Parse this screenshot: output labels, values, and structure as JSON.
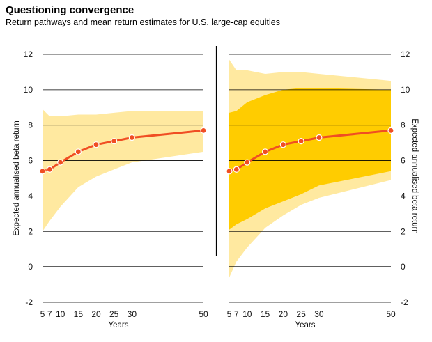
{
  "title": "Questioning convergence",
  "subtitle": "Return pathways and mean return estimates for U.S. large-cap equities",
  "colors": {
    "outer_band": "#FFE9A0",
    "inner_band": "#FFCC00",
    "line": "#F04E23",
    "marker": "#F04E23",
    "grid": "#000000"
  },
  "chart_data": [
    {
      "type": "area",
      "panel": "left",
      "xlabel": "Years",
      "ylabel": "Expected annualised beta return",
      "ylim": [
        -2,
        12
      ],
      "yticks": [
        -2,
        0,
        2,
        4,
        6,
        8,
        10,
        12
      ],
      "xticks": [
        5,
        7,
        10,
        15,
        20,
        25,
        30,
        50
      ],
      "grid": true,
      "bands": [
        {
          "x": [
            5,
            7,
            10,
            15,
            20,
            25,
            30,
            50
          ],
          "upper": [
            8.9,
            8.5,
            8.5,
            8.6,
            8.6,
            8.7,
            8.8,
            8.8
          ],
          "lower": [
            2.0,
            2.6,
            3.4,
            4.5,
            5.1,
            5.5,
            5.9,
            6.5
          ]
        }
      ],
      "series": [
        {
          "x": [
            5,
            7,
            10,
            15,
            20,
            25,
            30,
            50
          ],
          "values": [
            5.4,
            5.5,
            5.9,
            6.5,
            6.9,
            7.1,
            7.3,
            7.7
          ]
        }
      ]
    },
    {
      "type": "area",
      "panel": "right",
      "xlabel": "Years",
      "ylabel": "Expected annualised beta return",
      "ylim": [
        -2,
        12
      ],
      "yticks": [
        -2,
        0,
        2,
        4,
        6,
        8,
        10,
        12
      ],
      "xticks": [
        5,
        7,
        10,
        15,
        20,
        25,
        30,
        50
      ],
      "grid": true,
      "bands": [
        {
          "x": [
            5,
            7,
            10,
            15,
            20,
            25,
            30,
            50
          ],
          "upper": [
            11.7,
            11.1,
            11.1,
            10.9,
            11.0,
            11.0,
            10.9,
            10.5
          ],
          "lower": [
            -0.6,
            0.3,
            1.1,
            2.2,
            2.9,
            3.5,
            3.9,
            4.9
          ]
        },
        {
          "x": [
            5,
            7,
            10,
            15,
            20,
            25,
            30,
            50
          ],
          "upper": [
            8.7,
            8.8,
            9.3,
            9.7,
            10.0,
            10.1,
            10.1,
            10.0
          ],
          "lower": [
            2.1,
            2.4,
            2.7,
            3.3,
            3.7,
            4.1,
            4.6,
            5.4
          ]
        }
      ],
      "series": [
        {
          "x": [
            5,
            7,
            10,
            15,
            20,
            25,
            30,
            50
          ],
          "values": [
            5.4,
            5.5,
            5.9,
            6.5,
            6.9,
            7.1,
            7.3,
            7.7
          ]
        }
      ]
    }
  ]
}
